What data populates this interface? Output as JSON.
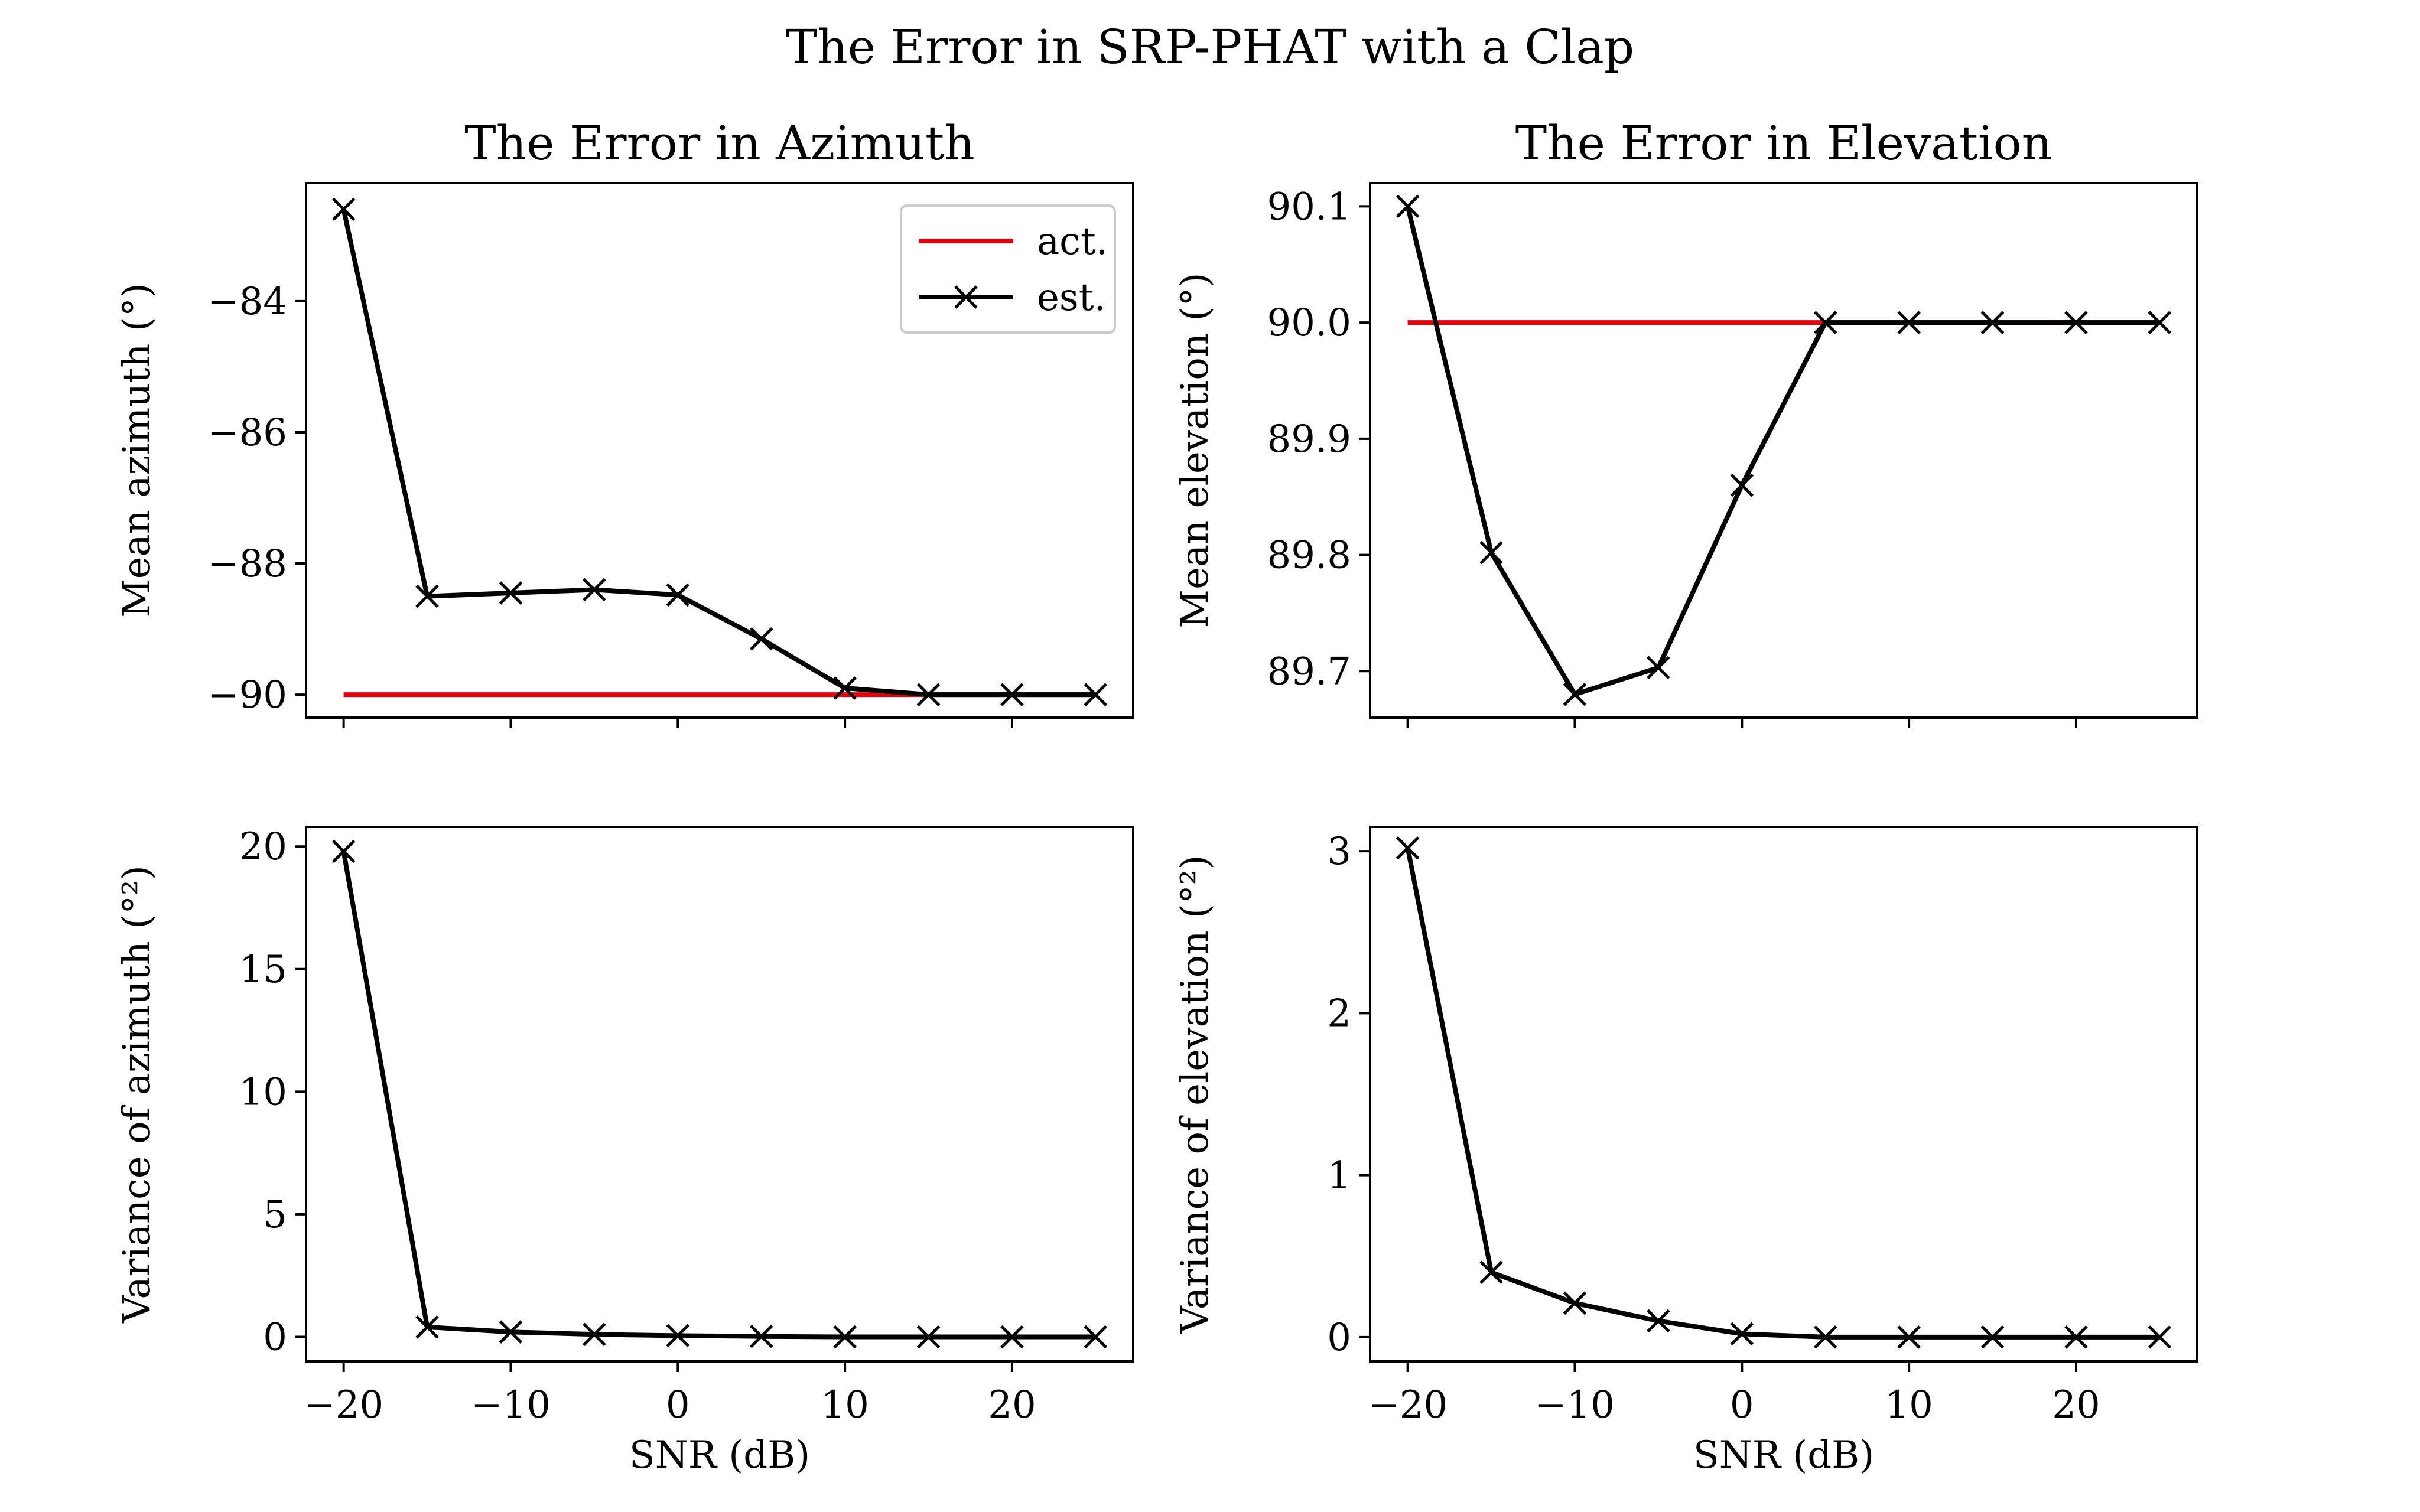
{
  "figure": {
    "suptitle": "The Error in SRP-PHAT with a Clap"
  },
  "colors": {
    "actual": "#e8000b",
    "estimate": "#000000"
  },
  "legend": {
    "placement": "upper-right",
    "entries": [
      "act.",
      "est."
    ]
  },
  "chart_data": [
    {
      "type": "line",
      "title": "The Error in Azimuth",
      "xlabel": "",
      "ylabel": "Mean azimuth (°)",
      "x": [
        -20,
        -15,
        -10,
        -5,
        0,
        5,
        10,
        15,
        20,
        25
      ],
      "xlim": [
        -22.25,
        27.25
      ],
      "ylim": [
        -90.35,
        -82.2
      ],
      "xticks": [
        -20,
        -10,
        0,
        10,
        20
      ],
      "xtick_labels": [
        "",
        "",
        "",
        "",
        ""
      ],
      "yticks": [
        -84,
        -86,
        -88,
        -90
      ],
      "ytick_labels": [
        "−84",
        "−86",
        "−88",
        "−90"
      ],
      "grid": false,
      "series": [
        {
          "name": "act.",
          "marker": "none",
          "values": [
            -90,
            -90,
            -90,
            -90,
            -90,
            -90,
            -90,
            -90,
            -90,
            -90
          ]
        },
        {
          "name": "est.",
          "marker": "x",
          "values": [
            -82.6,
            -88.5,
            -88.45,
            -88.4,
            -88.48,
            -89.15,
            -89.9,
            -90,
            -90,
            -90
          ]
        }
      ]
    },
    {
      "type": "line",
      "title": "The Error in Elevation",
      "xlabel": "",
      "ylabel": "Mean elevation (°)",
      "x": [
        -20,
        -15,
        -10,
        -5,
        0,
        5,
        10,
        15,
        20,
        25
      ],
      "xlim": [
        -22.25,
        27.25
      ],
      "ylim": [
        89.66,
        90.12
      ],
      "xticks": [
        -20,
        -10,
        0,
        10,
        20
      ],
      "xtick_labels": [
        "",
        "",
        "",
        "",
        ""
      ],
      "yticks": [
        90.1,
        90.0,
        89.9,
        89.8,
        89.7
      ],
      "ytick_labels": [
        "90.1",
        "90.0",
        "89.9",
        "89.8",
        "89.7"
      ],
      "grid": false,
      "series": [
        {
          "name": "act.",
          "marker": "none",
          "values": [
            90.0,
            90.0,
            90.0,
            90.0,
            90.0,
            90.0,
            90.0,
            90.0,
            90.0,
            90.0
          ]
        },
        {
          "name": "est.",
          "marker": "x",
          "values": [
            90.1,
            89.802,
            89.68,
            89.703,
            89.86,
            90.0,
            90.0,
            90.0,
            90.0,
            90.0
          ]
        }
      ]
    },
    {
      "type": "line",
      "title": "",
      "xlabel": "SNR (dB)",
      "ylabel": "Variance of azimuth (°²)",
      "x": [
        -20,
        -15,
        -10,
        -5,
        0,
        5,
        10,
        15,
        20,
        25
      ],
      "xlim": [
        -22.25,
        27.25
      ],
      "ylim": [
        -1.0,
        20.8
      ],
      "xticks": [
        -20,
        -10,
        0,
        10,
        20
      ],
      "xtick_labels": [
        "−20",
        "−10",
        "0",
        "10",
        "20"
      ],
      "yticks": [
        0,
        5,
        10,
        15,
        20
      ],
      "ytick_labels": [
        "0",
        "5",
        "10",
        "15",
        "20"
      ],
      "grid": false,
      "series": [
        {
          "name": "est.",
          "marker": "x",
          "values": [
            19.8,
            0.4,
            0.2,
            0.1,
            0.05,
            0.02,
            0.0,
            0.0,
            0.0,
            0.0
          ]
        }
      ]
    },
    {
      "type": "line",
      "title": "",
      "xlabel": "SNR (dB)",
      "ylabel": "Variance of elevation (°²)",
      "x": [
        -20,
        -15,
        -10,
        -5,
        0,
        5,
        10,
        15,
        20,
        25
      ],
      "xlim": [
        -22.25,
        27.25
      ],
      "ylim": [
        -0.15,
        3.15
      ],
      "xticks": [
        -20,
        -10,
        0,
        10,
        20
      ],
      "xtick_labels": [
        "−20",
        "−10",
        "0",
        "10",
        "20"
      ],
      "yticks": [
        0,
        1,
        2,
        3
      ],
      "ytick_labels": [
        "0",
        "1",
        "2",
        "3"
      ],
      "grid": false,
      "series": [
        {
          "name": "est.",
          "marker": "x",
          "values": [
            3.02,
            0.4,
            0.21,
            0.1,
            0.02,
            0.0,
            0.0,
            0.0,
            0.0,
            0.0
          ]
        }
      ]
    }
  ]
}
